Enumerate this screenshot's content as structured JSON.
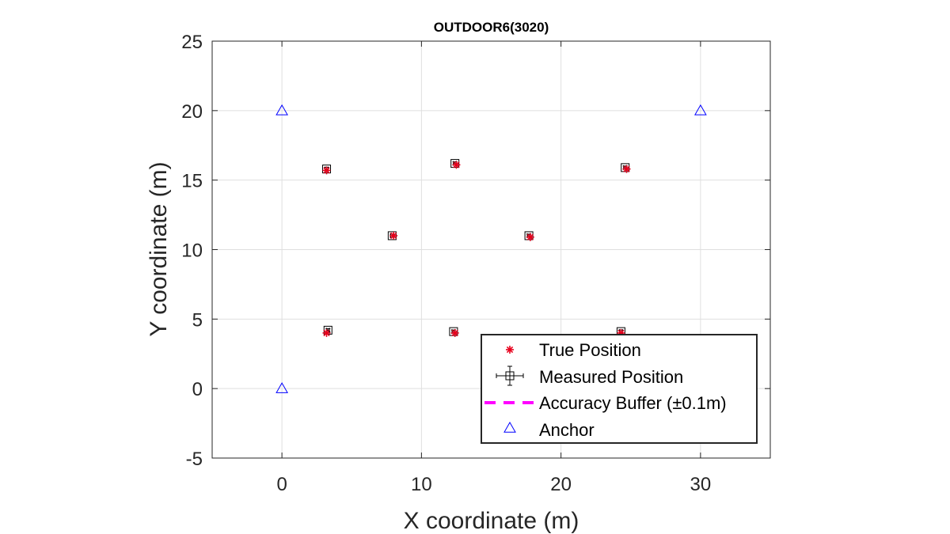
{
  "chart_data": {
    "type": "scatter",
    "title": "OUTDOOR6(3020)",
    "xlabel": "X coordinate (m)",
    "ylabel": "Y coordinate (m)",
    "xlim": [
      -5,
      35
    ],
    "ylim": [
      -5,
      25
    ],
    "xticks": [
      0,
      10,
      20,
      30
    ],
    "yticks": [
      -5,
      0,
      5,
      10,
      15,
      20,
      25
    ],
    "xtick_labels": [
      "0",
      "10",
      "20",
      "30"
    ],
    "ytick_labels": [
      "-5",
      "0",
      "5",
      "10",
      "15",
      "20",
      "25"
    ],
    "grid": true,
    "legend_position": "bottom-right",
    "series": [
      {
        "name": "True Position",
        "marker": "asterisk",
        "color": "#e8001c",
        "x": [
          3.2,
          12.5,
          24.7,
          8.0,
          17.8,
          3.2,
          12.4,
          24.3
        ],
        "y": [
          15.7,
          16.1,
          15.8,
          11.0,
          10.9,
          4.0,
          4.0,
          4.0
        ]
      },
      {
        "name": "Measured Position",
        "marker": "square-errorbar",
        "color": "#000000",
        "x": [
          3.2,
          12.4,
          24.6,
          7.9,
          17.7,
          3.3,
          12.3,
          24.3
        ],
        "y": [
          15.8,
          16.2,
          15.9,
          11.0,
          11.0,
          4.2,
          4.1,
          4.1
        ],
        "error": 0.1
      },
      {
        "name": "Accuracy Buffer (±0.1m)",
        "marker": "dashed-circle",
        "color": "#ff00ff",
        "radius": 0.1
      },
      {
        "name": "Anchor",
        "marker": "triangle",
        "color": "#0000ff",
        "x": [
          0,
          0,
          30
        ],
        "y": [
          0,
          20,
          20
        ]
      }
    ]
  }
}
